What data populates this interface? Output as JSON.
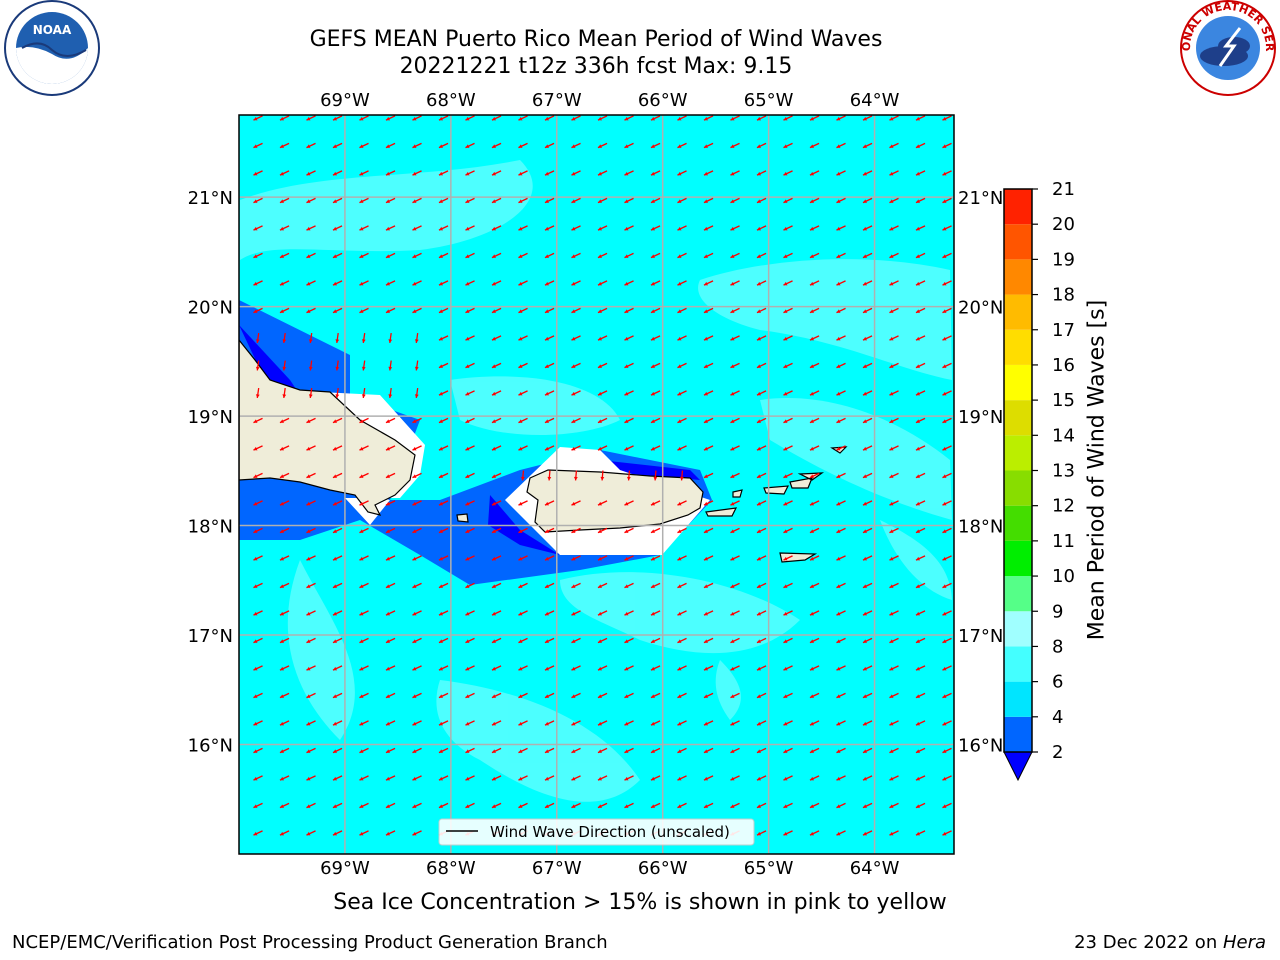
{
  "header": {
    "title_line1": "GEFS MEAN Puerto Rico Mean Period of Wind Waves",
    "title_line2": "20221221 t12z 336h fcst   Max: 9.15"
  },
  "logos": {
    "left": "noaa-logo",
    "right": "nws-logo",
    "left_text": "NOAA",
    "right_text": "NATIONAL WEATHER SERVICE"
  },
  "map": {
    "lon_range": [
      -70.0,
      -63.25
    ],
    "lat_range": [
      15.0,
      21.75
    ],
    "lon_ticks": [
      "69°W",
      "68°W",
      "67°W",
      "66°W",
      "65°W",
      "64°W"
    ],
    "lon_values": [
      -69,
      -68,
      -67,
      -66,
      -65,
      -64
    ],
    "lat_ticks": [
      "21°N",
      "20°N",
      "19°N",
      "18°N",
      "17°N",
      "16°N"
    ],
    "lat_values": [
      21,
      20,
      19,
      18,
      17,
      16
    ],
    "background_color": "#00ffff",
    "land_color": "#efedd9",
    "arrow_color": "#ff0000",
    "legend_label": "Wind Wave Direction (unscaled)"
  },
  "colorbar": {
    "label": "Mean Period of Wind Waves [s]",
    "ticks": [
      "2",
      "4",
      "6",
      "8",
      "9",
      "10",
      "11",
      "12",
      "13",
      "14",
      "15",
      "16",
      "17",
      "18",
      "19",
      "20",
      "21"
    ],
    "levels": [
      2,
      4,
      6,
      8,
      9,
      10,
      11,
      12,
      13,
      14,
      15,
      16,
      17,
      18,
      19,
      20,
      21
    ],
    "colors": [
      "#0066ff",
      "#00e5ff",
      "#44ffff",
      "#a0ffff",
      "#55ff88",
      "#00ee00",
      "#44dd00",
      "#88dd00",
      "#bbee00",
      "#dddd00",
      "#ffff00",
      "#ffdd00",
      "#ffbb00",
      "#ff8800",
      "#ff5500",
      "#ff2200",
      "#ff0000"
    ],
    "under_color": "#0000ff"
  },
  "footer": {
    "ice_note": "Sea Ice Concentration > 15% is shown in pink to yellow",
    "credit": "NCEP/EMC/Verification Post Processing Product Generation Branch",
    "date": "23 Dec 2022 on ",
    "host": "Hera"
  }
}
